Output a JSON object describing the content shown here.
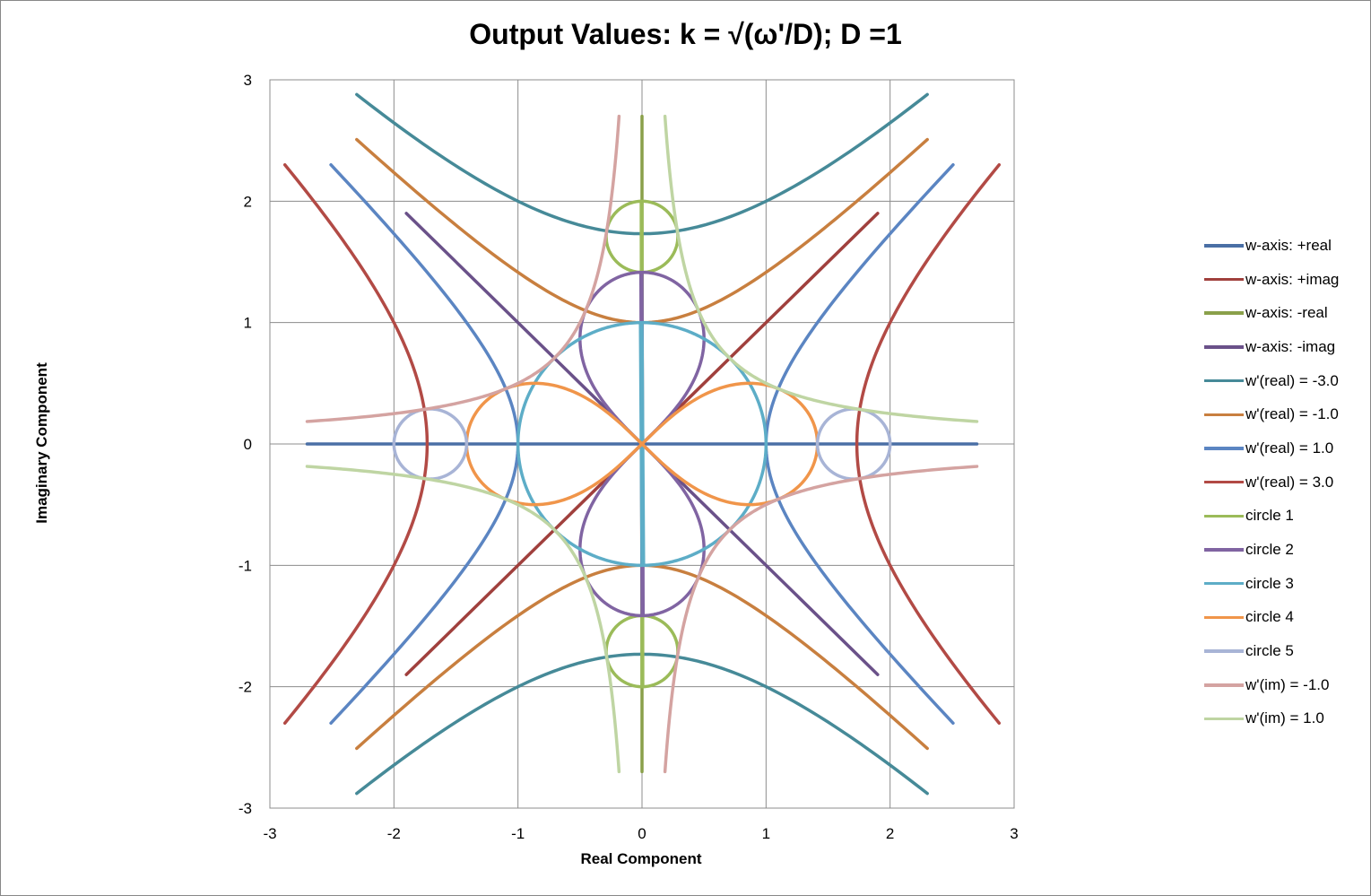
{
  "chart_data": {
    "type": "line",
    "title": "Output Values:  k = √(ω'/D);  D =1",
    "xlabel": "Real Component",
    "ylabel": "Imaginary Component",
    "xlim": [
      -3,
      3
    ],
    "ylim": [
      -3,
      3
    ],
    "xticks": [
      -3,
      -2,
      -1,
      0,
      1,
      2,
      3
    ],
    "yticks": [
      -3,
      -2,
      -1,
      0,
      1,
      2,
      3
    ],
    "grid": true,
    "legend_position": "right",
    "series": [
      {
        "name": "w-axis: +real",
        "color": "#4A6FA5",
        "kind": "axis",
        "dir": "real",
        "range": [
          -2.7,
          2.7
        ]
      },
      {
        "name": "w-axis: +imag",
        "color": "#A0403D",
        "kind": "diag",
        "slope": 1,
        "range": [
          -1.9,
          1.9
        ]
      },
      {
        "name": "w-axis: -real",
        "color": "#8AA04A",
        "kind": "axis",
        "dir": "imag",
        "range": [
          -2.7,
          2.7
        ]
      },
      {
        "name": "w-axis: -imag",
        "color": "#6A5189",
        "kind": "diag",
        "slope": -1,
        "range": [
          -1.9,
          1.9
        ]
      },
      {
        "name": "w'(real) = -3.0",
        "color": "#468A98",
        "kind": "hyp_real",
        "c": -3.0
      },
      {
        "name": "w'(real) = -1.0",
        "color": "#C87F3F",
        "kind": "hyp_real",
        "c": -1.0
      },
      {
        "name": "w'(real) = 1.0",
        "color": "#5B85C2",
        "kind": "hyp_real",
        "c": 1.0
      },
      {
        "name": "w'(real) = 3.0",
        "color": "#B24A45",
        "kind": "hyp_real",
        "c": 3.0
      },
      {
        "name": "circle 1",
        "color": "#9BBB59",
        "kind": "circle_mag",
        "r": 3,
        "axis": "imag"
      },
      {
        "name": "circle 2",
        "color": "#8064A2",
        "kind": "circle_mag",
        "r": 2,
        "axis": "imag"
      },
      {
        "name": "circle 3",
        "color": "#5DADC7",
        "kind": "circle_mag",
        "r": 1,
        "axis": "both"
      },
      {
        "name": "circle 4",
        "color": "#F0954A",
        "kind": "circle_mag",
        "r": 2,
        "axis": "real"
      },
      {
        "name": "circle 5",
        "color": "#A8B4D6",
        "kind": "circle_mag",
        "r": 3,
        "axis": "real"
      },
      {
        "name": "w'(im) = -1.0",
        "color": "#D4A3A1",
        "kind": "hyp_imag",
        "c": -1.0
      },
      {
        "name": "w'(im) = 1.0",
        "color": "#BFD5A3",
        "kind": "hyp_imag",
        "c": 1.0
      }
    ]
  }
}
